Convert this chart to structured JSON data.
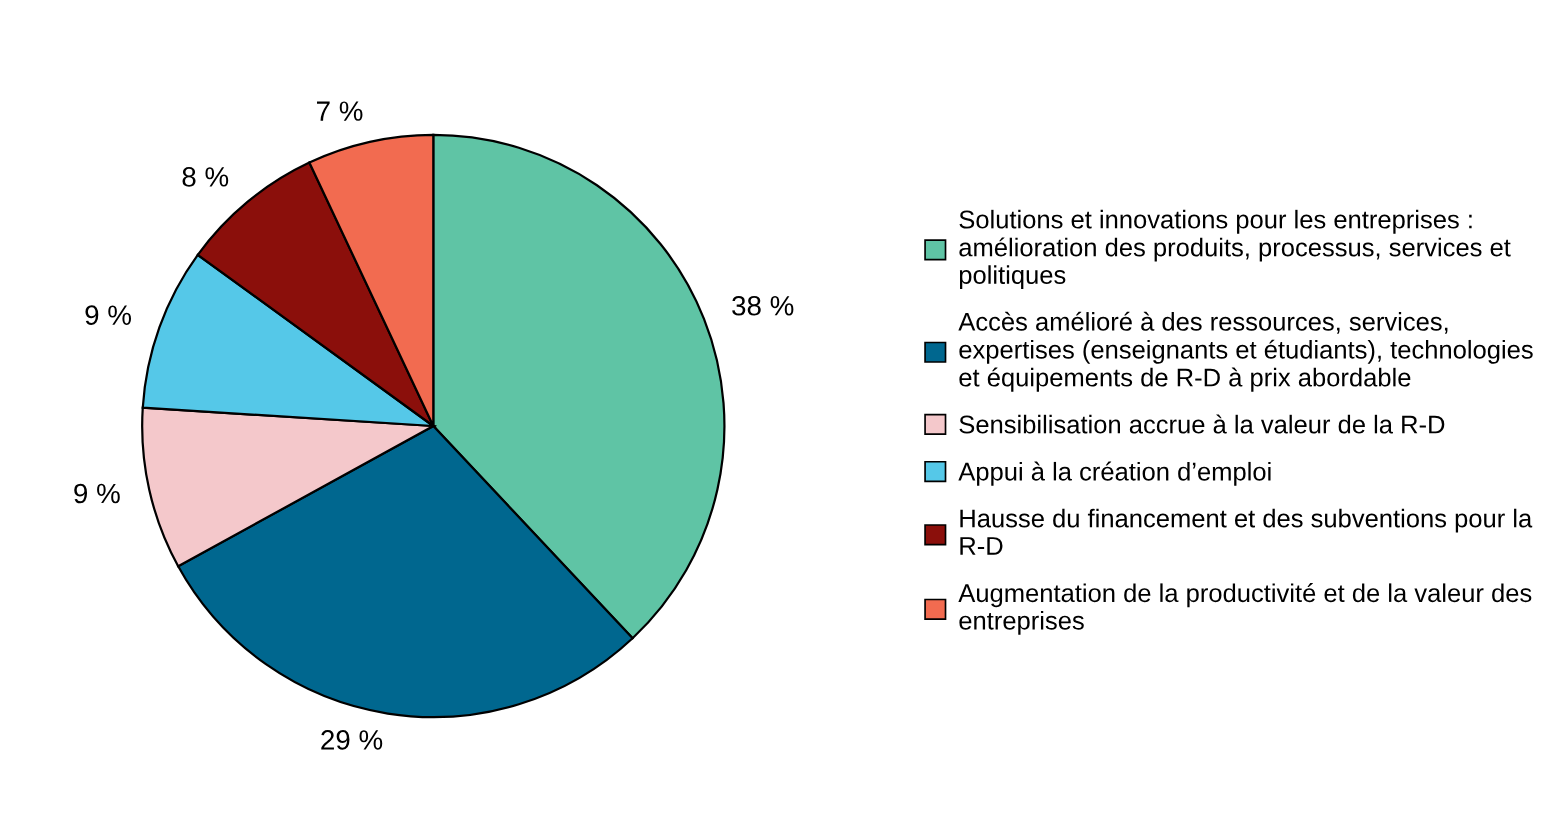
{
  "chart_data": {
    "type": "pie",
    "categories": [
      "Solutions et innovations pour les entreprises :\namélioration des produits, processus, services et\npolitiques",
      "Accès amélioré à des ressources, services,\nexpertises (enseignants et étudiants), technologies\net équipements de R-D à prix abordable",
      "Sensibilisation accrue à la valeur de la R-D",
      "Appui à la création d’emploi",
      "Hausse du financement et des subventions pour la\nR-D",
      "Augmentation de la productivité et de la valeur des\nentreprises"
    ],
    "values": [
      38,
      29,
      9,
      9,
      8,
      7
    ],
    "value_labels": [
      "38 %",
      "29 %",
      "9 %",
      "9 %",
      "8 %",
      "7 %"
    ],
    "colors": [
      "#5fc4a5",
      "#00678f",
      "#f4c8cb",
      "#55c8e8",
      "#8b0f0b",
      "#f26b50"
    ],
    "legend": "right"
  }
}
